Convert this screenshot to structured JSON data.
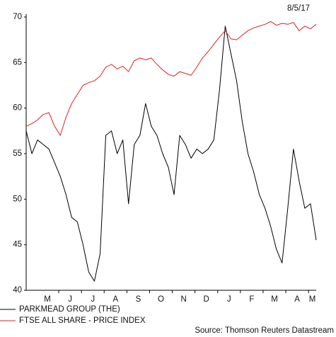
{
  "chart_data": {
    "type": "line",
    "date": "8/5/17",
    "source": "Source: Thomson Reuters Datastream",
    "months": [
      "M",
      "J",
      "J",
      "A",
      "S",
      "O",
      "N",
      "D",
      "J",
      "F",
      "M",
      "A",
      "M"
    ],
    "ylim": [
      40,
      70
    ],
    "yticks": [
      40,
      45,
      50,
      55,
      60,
      65,
      70
    ],
    "series": [
      {
        "name": "PARKMEAD GROUP (THE)",
        "color": "#000000",
        "values": [
          57.5,
          55,
          56.5,
          56,
          55.5,
          54,
          52.5,
          50.5,
          48,
          47.5,
          45,
          42,
          41,
          44,
          57,
          57.5,
          55,
          56.5,
          49.5,
          56,
          57,
          60.5,
          58,
          57,
          55,
          53.5,
          50.5,
          57,
          56,
          54.5,
          55.5,
          55,
          55.5,
          56.5,
          62,
          69,
          66,
          63,
          58.5,
          55,
          53,
          50.5,
          49,
          47,
          44.5,
          43,
          49,
          55.5,
          52,
          49,
          49.5,
          45.5
        ]
      },
      {
        "name": "FTSE ALL SHARE - PRICE INDEX",
        "color": "#e0211c",
        "values": [
          58,
          58.3,
          58.7,
          59.3,
          59.5,
          58,
          57,
          59,
          60.5,
          61.5,
          62.5,
          62.8,
          63,
          63.5,
          64.5,
          64.8,
          64.3,
          64.6,
          64,
          65.2,
          65.5,
          65.3,
          65.5,
          64.8,
          64.2,
          63.7,
          63.5,
          64,
          63.8,
          63.6,
          64.5,
          65.5,
          66.2,
          67,
          67.8,
          68.5,
          67.6,
          67.5,
          68,
          68.5,
          68.8,
          69,
          69.2,
          69.5,
          69.1,
          69.3,
          69.2,
          69.4,
          68.5,
          69,
          68.7,
          69.2
        ]
      }
    ]
  }
}
